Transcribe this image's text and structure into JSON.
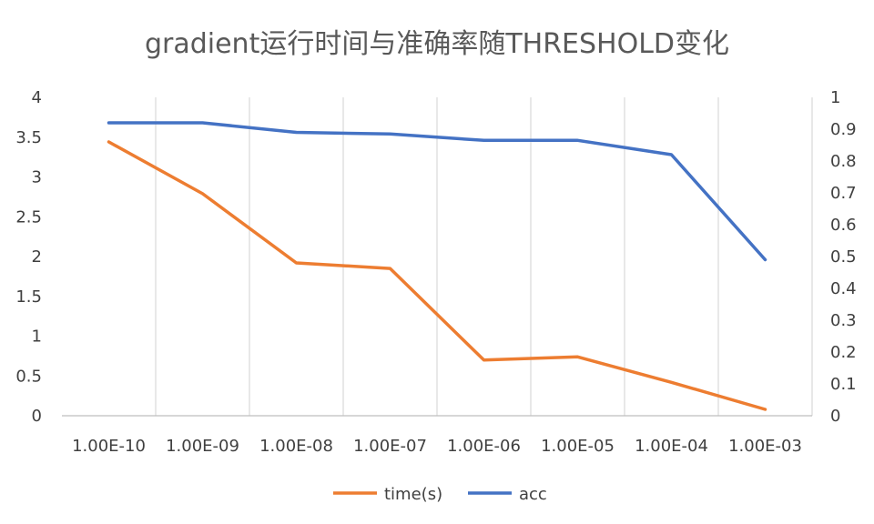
{
  "chart_data": {
    "type": "line",
    "title": "gradient运行时间与准确率随THRESHOLD变化",
    "categories": [
      "1.00E-10",
      "1.00E-09",
      "1.00E-08",
      "1.00E-07",
      "1.00E-06",
      "1.00E-05",
      "1.00E-04",
      "1.00E-03"
    ],
    "y_left": {
      "ylim": [
        0,
        4
      ],
      "ticks": [
        "0",
        "0.5",
        "1",
        "1.5",
        "2",
        "2.5",
        "3",
        "3.5",
        "4"
      ]
    },
    "y_right": {
      "ylim": [
        0,
        1
      ],
      "ticks": [
        "0",
        "0.1",
        "0.2",
        "0.3",
        "0.4",
        "0.5",
        "0.6",
        "0.7",
        "0.8",
        "0.9",
        "1"
      ]
    },
    "grid": "vertical",
    "legend_position": "bottom",
    "series": [
      {
        "name": "time(s)",
        "axis": "left",
        "color": "#ED7D31",
        "values": [
          3.44,
          2.79,
          1.92,
          1.85,
          0.7,
          0.74,
          0.42,
          0.08
        ]
      },
      {
        "name": "acc",
        "axis": "right",
        "color": "#4472C4",
        "values": [
          0.92,
          0.92,
          0.89,
          0.885,
          0.865,
          0.865,
          0.82,
          0.49
        ]
      }
    ]
  }
}
